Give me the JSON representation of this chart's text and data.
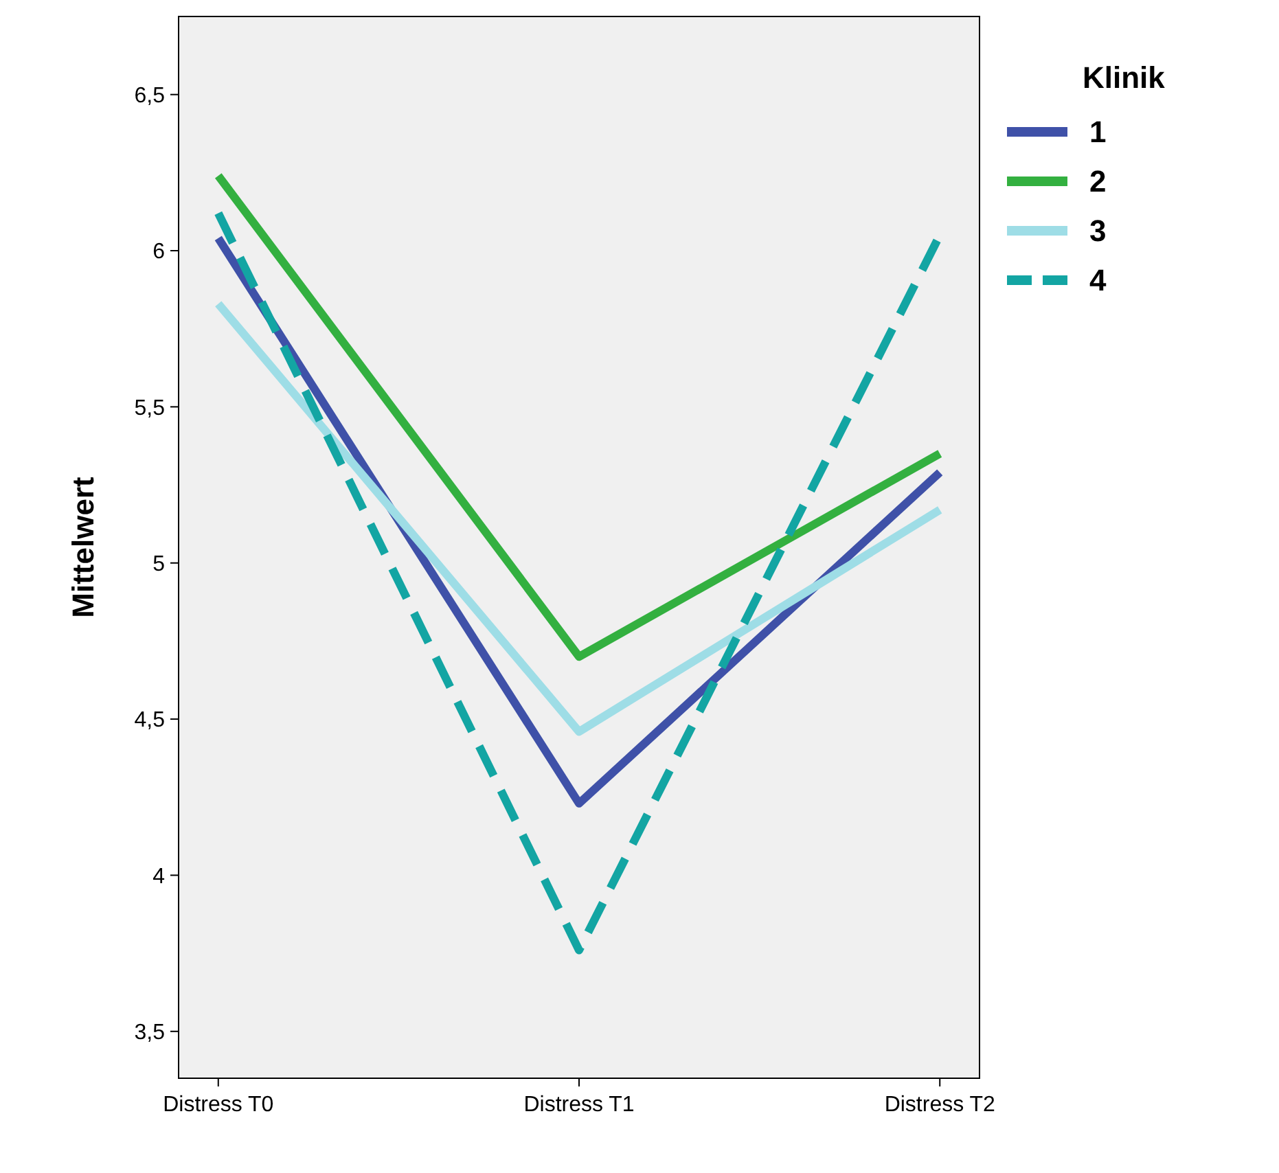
{
  "chart_data": {
    "type": "line",
    "ylabel": "Mittelwert",
    "legend_title": "Klinik",
    "legend": "right",
    "grid": false,
    "categories": [
      "Distress T0",
      "Distress T1",
      "Distress T2"
    ],
    "ylim": [
      3.35,
      6.75
    ],
    "yticks": [
      {
        "value": 3.5,
        "label": "3,5"
      },
      4,
      {
        "value": 4.5,
        "label": "4,5"
      },
      5,
      {
        "value": 5.5,
        "label": "5,5"
      },
      6,
      {
        "value": 6.5,
        "label": "6,5"
      }
    ],
    "series": [
      {
        "name": "1",
        "color": "#3f51a8",
        "line_style": "solid",
        "values": [
          6.04,
          4.23,
          5.29
        ]
      },
      {
        "name": "2",
        "color": "#33b040",
        "line_style": "solid",
        "values": [
          6.24,
          4.7,
          5.35
        ]
      },
      {
        "name": "3",
        "color": "#9edde6",
        "line_style": "solid",
        "values": [
          5.83,
          4.46,
          5.17
        ]
      },
      {
        "name": "4",
        "color": "#13a5a3",
        "line_style": "dashed",
        "values": [
          6.12,
          3.76,
          6.05
        ]
      }
    ]
  }
}
